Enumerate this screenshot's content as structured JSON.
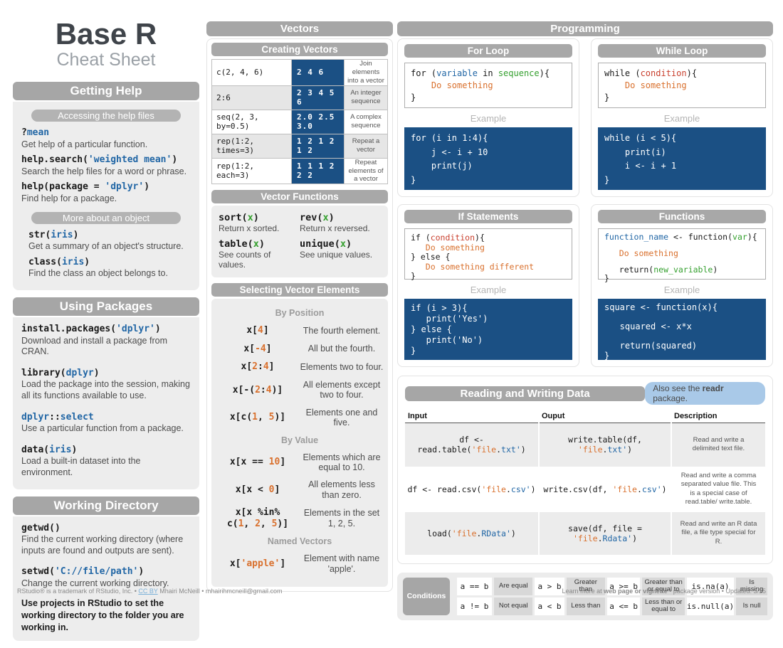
{
  "title": {
    "main": "Base R",
    "sub": "Cheat Sheet"
  },
  "left": {
    "getting_help": {
      "header": "Getting Help",
      "pill_access": "Accessing the help files",
      "entries_access": [
        {
          "code": [
            {
              "t": "?"
            },
            {
              "t": "mean",
              "c": "b"
            }
          ],
          "desc": "Get help of a particular function."
        },
        {
          "code": [
            {
              "t": "help.search("
            },
            {
              "t": "'weighted mean'",
              "c": "b"
            },
            {
              "t": ")"
            }
          ],
          "desc": "Search the help files for a word or phrase."
        },
        {
          "code": [
            {
              "t": "help(package = "
            },
            {
              "t": "'dplyr'",
              "c": "b"
            },
            {
              "t": ")"
            }
          ],
          "desc": "Find help for a package."
        }
      ],
      "pill_more": "More about an object",
      "entries_more": [
        {
          "code": [
            {
              "t": "str("
            },
            {
              "t": "iris",
              "c": "b"
            },
            {
              "t": ")"
            }
          ],
          "desc": "Get a summary of an object's structure."
        },
        {
          "code": [
            {
              "t": "class("
            },
            {
              "t": "iris",
              "c": "b"
            },
            {
              "t": ")"
            }
          ],
          "desc": "Find the class an object belongs to."
        }
      ]
    },
    "using_packages": {
      "header": "Using Packages",
      "entries": [
        {
          "code": [
            {
              "t": "install.packages("
            },
            {
              "t": "'dplyr'",
              "c": "b"
            },
            {
              "t": ")"
            }
          ],
          "desc": "Download and install a package from CRAN."
        },
        {
          "code": [
            {
              "t": "library("
            },
            {
              "t": "dplyr",
              "c": "b"
            },
            {
              "t": ")"
            }
          ],
          "desc": "Load the package into the session, making all its functions available to use."
        },
        {
          "code": [
            {
              "t": "dplyr",
              "c": "b"
            },
            {
              "t": "::"
            },
            {
              "t": "select",
              "c": "b"
            }
          ],
          "desc": "Use a particular function from a package."
        },
        {
          "code": [
            {
              "t": "data("
            },
            {
              "t": "iris",
              "c": "b"
            },
            {
              "t": ")"
            }
          ],
          "desc": "Load a built-in dataset into the environment."
        }
      ]
    },
    "working_directory": {
      "header": "Working Directory",
      "entries": [
        {
          "code": [
            {
              "t": "getwd()"
            }
          ],
          "desc": "Find the current working directory (where inputs are found and outputs are sent)."
        },
        {
          "code": [
            {
              "t": "setwd("
            },
            {
              "t": "'C://file/path'",
              "c": "b"
            },
            {
              "t": ")"
            }
          ],
          "desc": "Change the current working directory."
        }
      ],
      "note": "Use projects in RStudio to set the working directory to the folder you are working in."
    }
  },
  "vectors": {
    "header": "Vectors",
    "creating": {
      "header": "Creating Vectors",
      "rows": [
        {
          "code": "c(2, 4, 6)",
          "values": "2 4 6",
          "desc": "Join elements into a vector"
        },
        {
          "code": "2:6",
          "values": "2 3 4 5 6",
          "desc": "An integer sequence"
        },
        {
          "code": "seq(2, 3, by=0.5)",
          "values": "2.0 2.5 3.0",
          "desc": "A complex sequence"
        },
        {
          "code": "rep(1:2, times=3)",
          "values": "1 2 1 2 1 2",
          "desc": "Repeat a vector"
        },
        {
          "code": "rep(1:2, each=3)",
          "values": "1 1 1 2 2 2",
          "desc": "Repeat elements of a vector"
        }
      ]
    },
    "functions": {
      "header": "Vector Functions",
      "entries": [
        {
          "code": [
            {
              "t": "sort("
            },
            {
              "t": "x",
              "c": "g"
            },
            {
              "t": ")"
            }
          ],
          "desc": "Return x sorted."
        },
        {
          "code": [
            {
              "t": "rev("
            },
            {
              "t": "x",
              "c": "g"
            },
            {
              "t": ")"
            }
          ],
          "desc": "Return x reversed."
        },
        {
          "code": [
            {
              "t": "table("
            },
            {
              "t": "x",
              "c": "g"
            },
            {
              "t": ")"
            }
          ],
          "desc": "See counts of values."
        },
        {
          "code": [
            {
              "t": "unique("
            },
            {
              "t": "x",
              "c": "g"
            },
            {
              "t": ")"
            }
          ],
          "desc": "See unique values."
        }
      ]
    },
    "selecting": {
      "header": "Selecting Vector Elements",
      "groups": [
        {
          "label": "By Position",
          "entries": [
            {
              "code": [
                {
                  "t": "x["
                },
                {
                  "t": "4",
                  "c": "o"
                },
                {
                  "t": "]"
                }
              ],
              "desc": "The fourth element."
            },
            {
              "code": [
                {
                  "t": "x["
                },
                {
                  "t": "-4",
                  "c": "o"
                },
                {
                  "t": "]"
                }
              ],
              "desc": "All but the fourth."
            },
            {
              "code": [
                {
                  "t": "x["
                },
                {
                  "t": "2",
                  "c": "o"
                },
                {
                  "t": ":"
                },
                {
                  "t": "4",
                  "c": "o"
                },
                {
                  "t": "]"
                }
              ],
              "desc": "Elements two to four."
            },
            {
              "code": [
                {
                  "t": "x[-("
                },
                {
                  "t": "2",
                  "c": "o"
                },
                {
                  "t": ":"
                },
                {
                  "t": "4",
                  "c": "o"
                },
                {
                  "t": ")]"
                }
              ],
              "desc": "All elements except two to four."
            },
            {
              "code": [
                {
                  "t": "x[c("
                },
                {
                  "t": "1",
                  "c": "o"
                },
                {
                  "t": ", "
                },
                {
                  "t": "5",
                  "c": "o"
                },
                {
                  "t": ")]"
                }
              ],
              "desc": "Elements one and five."
            }
          ]
        },
        {
          "label": "By Value",
          "entries": [
            {
              "code": [
                {
                  "t": "x[x == "
                },
                {
                  "t": "10",
                  "c": "o"
                },
                {
                  "t": "]"
                }
              ],
              "desc": "Elements which are equal to 10."
            },
            {
              "code": [
                {
                  "t": "x[x < "
                },
                {
                  "t": "0",
                  "c": "o"
                },
                {
                  "t": "]"
                }
              ],
              "desc": "All elements less than zero."
            },
            {
              "code": [
                {
                  "t": "x[x %in%\nc("
                },
                {
                  "t": "1",
                  "c": "o"
                },
                {
                  "t": ", "
                },
                {
                  "t": "2",
                  "c": "o"
                },
                {
                  "t": ", "
                },
                {
                  "t": "5",
                  "c": "o"
                },
                {
                  "t": ")]"
                }
              ],
              "desc": "Elements in the set 1, 2, 5."
            }
          ]
        },
        {
          "label": "Named Vectors",
          "entries": [
            {
              "code": [
                {
                  "t": "x["
                },
                {
                  "t": "'apple'",
                  "c": "o"
                },
                {
                  "t": "]"
                }
              ],
              "desc": "Element with name 'apple'."
            }
          ]
        }
      ]
    }
  },
  "programming": {
    "header": "Programming",
    "blocks": [
      {
        "title": "For Loop",
        "code": [
          {
            "t": "for ("
          },
          {
            "t": "variable",
            "c": "b"
          },
          {
            "t": " in "
          },
          {
            "t": "sequence",
            "c": "g"
          },
          {
            "t": "){\n    "
          },
          {
            "t": "Do something",
            "c": "o"
          },
          {
            "t": "\n}"
          }
        ],
        "example_label": "Example",
        "example": "for (i in 1:4){\n    j <- i + 10\n    print(j)\n}"
      },
      {
        "title": "While Loop",
        "code": [
          {
            "t": "while ("
          },
          {
            "t": "condition",
            "c": "r"
          },
          {
            "t": "){\n    "
          },
          {
            "t": "Do something",
            "c": "o"
          },
          {
            "t": "\n}"
          }
        ],
        "example_label": "Example",
        "example": "while (i < 5){\n    print(i)\n    i <- i + 1\n}"
      },
      {
        "title": "If Statements",
        "code": [
          {
            "t": "if ("
          },
          {
            "t": "condition",
            "c": "r"
          },
          {
            "t": "){\n   "
          },
          {
            "t": "Do something",
            "c": "o"
          },
          {
            "t": "\n} else {\n   "
          },
          {
            "t": "Do something different",
            "c": "o"
          },
          {
            "t": "\n}"
          }
        ],
        "example_label": "Example",
        "example": "if (i > 3){\n   print('Yes')\n} else {\n   print('No')\n}"
      },
      {
        "title": "Functions",
        "code": [
          {
            "t": "function_name",
            "c": "b"
          },
          {
            "t": " <- function("
          },
          {
            "t": "var",
            "c": "g"
          },
          {
            "t": "){\n\n   "
          },
          {
            "t": "Do something",
            "c": "o"
          },
          {
            "t": "\n\n   return("
          },
          {
            "t": "new_variable",
            "c": "g"
          },
          {
            "t": ")\n}"
          }
        ],
        "example_label": "Example",
        "example": "square <- function(x){\n\n   squared <- x*x\n\n   return(squared)\n}"
      }
    ]
  },
  "reading_writing": {
    "header": "Reading and Writing Data",
    "badge": [
      {
        "t": "Also see the "
      },
      {
        "t": "readr",
        "c": "bold"
      },
      {
        "t": " package."
      }
    ],
    "headers": [
      "Input",
      "Ouput",
      "Description"
    ],
    "rows": [
      {
        "input": [
          {
            "t": "df <- read.table("
          },
          {
            "t": "'file",
            "c": "o"
          },
          {
            "t": "."
          },
          {
            "t": "txt'",
            "c": "b"
          },
          {
            "t": ")"
          }
        ],
        "output": [
          {
            "t": "write.table(df, "
          },
          {
            "t": "'file",
            "c": "o"
          },
          {
            "t": "."
          },
          {
            "t": "txt'",
            "c": "b"
          },
          {
            "t": ")"
          }
        ],
        "desc": "Read and write a delimited text file."
      },
      {
        "input": [
          {
            "t": "df <- read.csv("
          },
          {
            "t": "'file",
            "c": "o"
          },
          {
            "t": "."
          },
          {
            "t": "csv'",
            "c": "b"
          },
          {
            "t": ")"
          }
        ],
        "output": [
          {
            "t": "write.csv(df, "
          },
          {
            "t": "'file",
            "c": "o"
          },
          {
            "t": "."
          },
          {
            "t": "csv'",
            "c": "b"
          },
          {
            "t": ")"
          }
        ],
        "desc": "Read and write a comma separated value file. This is a special case of read.table/ write.table."
      },
      {
        "input": [
          {
            "t": "load("
          },
          {
            "t": "'file",
            "c": "o"
          },
          {
            "t": "."
          },
          {
            "t": "RData'",
            "c": "b"
          },
          {
            "t": ")"
          }
        ],
        "output": [
          {
            "t": "save(df, file = "
          },
          {
            "t": "'file",
            "c": "o"
          },
          {
            "t": "."
          },
          {
            "t": "Rdata'",
            "c": "b"
          },
          {
            "t": ")"
          }
        ],
        "desc": "Read and write an R data file, a file type special for R."
      }
    ]
  },
  "conditions": {
    "label": "Conditions",
    "cells": [
      {
        "code": "a == b",
        "desc": "Are equal"
      },
      {
        "code": "a > b",
        "desc": "Greater than"
      },
      {
        "code": "a >= b",
        "desc": "Greater than or equal to"
      },
      {
        "code": "is.na(a)",
        "desc": "Is missing"
      },
      {
        "code": "a != b",
        "desc": "Not equal"
      },
      {
        "code": "a < b",
        "desc": "Less than"
      },
      {
        "code": "a <= b",
        "desc": "Less than or equal to"
      },
      {
        "code": "is.null(a)",
        "desc": "Is null"
      }
    ]
  },
  "footer": {
    "left": [
      {
        "t": "RStudio® is a trademark of RStudio, Inc.  •  "
      },
      {
        "t": "CC BY",
        "c": "link"
      },
      {
        "t": " Mhairi McNeill  •  mhairihmcneill@gmail.com"
      }
    ],
    "right": [
      {
        "t": "Learn more at "
      },
      {
        "t": "web page or vignette",
        "c": "bold"
      },
      {
        "t": "  •  package version  •  Updated: 3/15"
      }
    ]
  }
}
